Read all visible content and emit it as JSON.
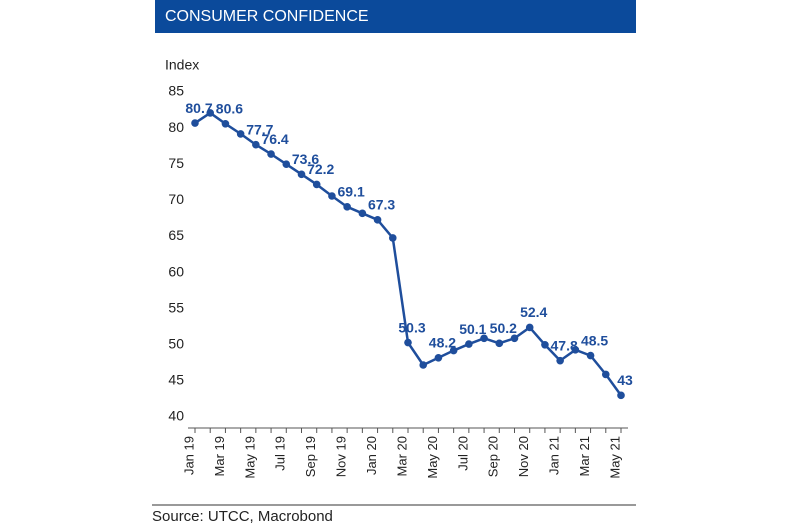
{
  "chart_data": {
    "type": "line",
    "title": "CONSUMER CONFIDENCE",
    "y_label": "Index",
    "source": "Source: UTCC, Macrobond",
    "categories": [
      "Jan 19",
      null,
      "Mar 19",
      null,
      "May 19",
      null,
      "Jul 19",
      null,
      "Sep 19",
      null,
      "Nov 19",
      null,
      "Jan 20",
      null,
      "Mar 20",
      null,
      "May 20",
      null,
      "Jul 20",
      null,
      "Sep 20",
      null,
      "Nov 20",
      null,
      "Jan 21",
      null,
      "Mar 21",
      null,
      "May 21"
    ],
    "series": [
      {
        "name": "Consumer confidence",
        "color": "#1f4e9c",
        "values": [
          80.7,
          82.1,
          80.6,
          79.2,
          77.7,
          76.4,
          75.0,
          73.6,
          72.2,
          70.6,
          69.1,
          68.2,
          67.3,
          64.8,
          50.3,
          47.2,
          48.2,
          49.2,
          50.1,
          50.9,
          50.2,
          50.9,
          52.4,
          50.0,
          47.8,
          49.3,
          48.5,
          45.9,
          43
        ],
        "value_labels": [
          "80.7",
          null,
          "80.6",
          null,
          "77.7",
          "76.4",
          null,
          "73.6",
          "72.2",
          null,
          "69.1",
          null,
          "67.3",
          null,
          "50.3",
          null,
          "48.2",
          null,
          "50.1",
          null,
          "50.2",
          null,
          "52.4",
          null,
          "47.8",
          null,
          "48.5",
          null,
          "43"
        ]
      }
    ],
    "ylim": [
      40,
      85
    ],
    "yticks": [
      40,
      45,
      50,
      55,
      60,
      65,
      70,
      75,
      80,
      85
    ]
  }
}
